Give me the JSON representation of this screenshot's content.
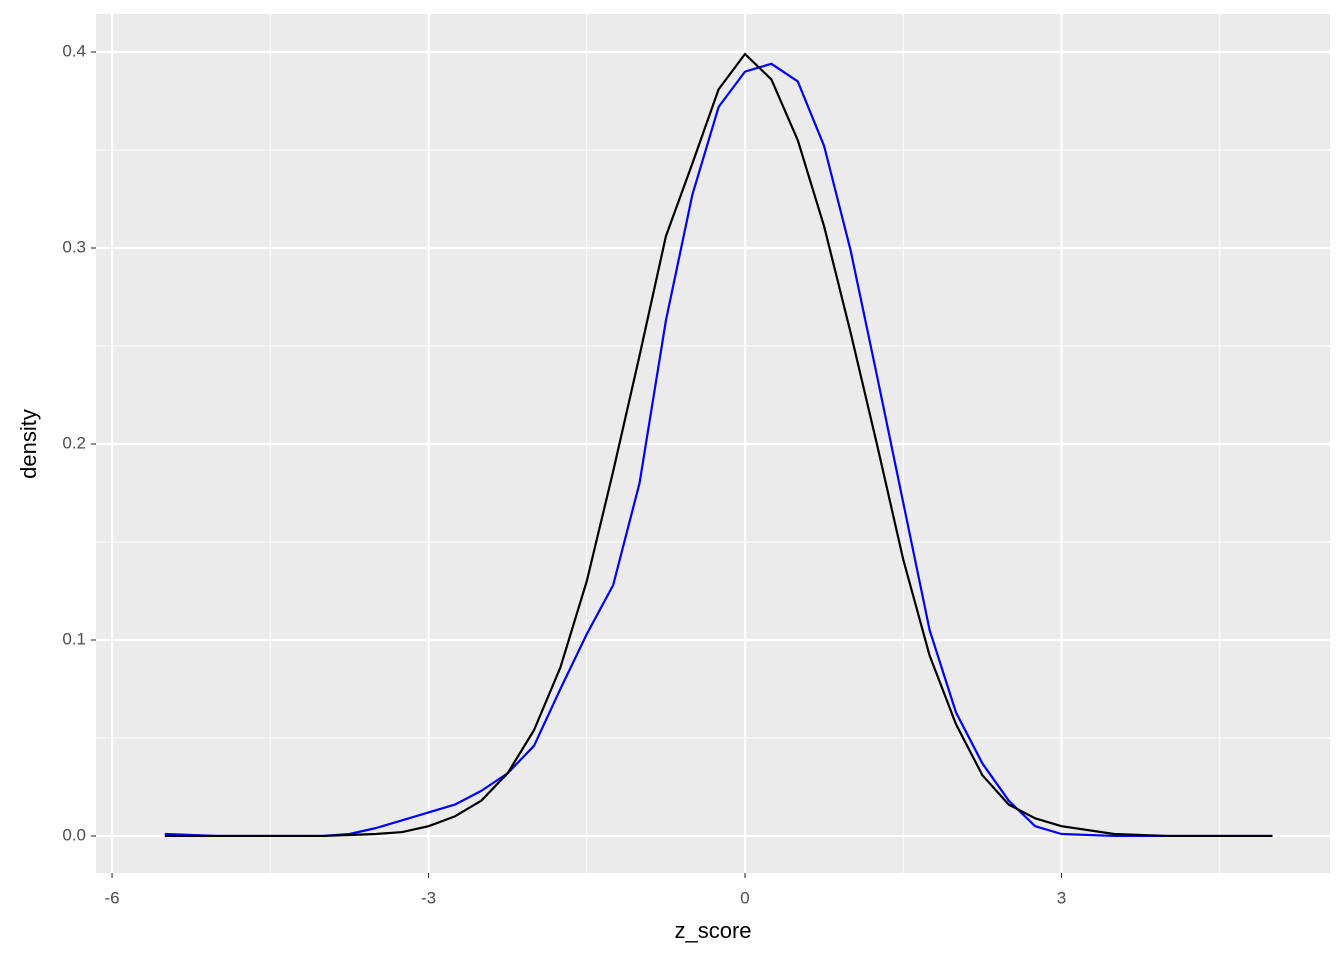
{
  "chart_data": {
    "type": "line",
    "x_label": "z_score",
    "y_label": "density",
    "x": [
      -5.5,
      -5,
      -4.5,
      -4,
      -3.75,
      -3.5,
      -3.25,
      -3,
      -2.75,
      -2.5,
      -2.25,
      -2,
      -1.75,
      -1.5,
      -1.25,
      -1,
      -0.75,
      -0.5,
      -0.25,
      0,
      0.25,
      0.5,
      0.75,
      1,
      1.25,
      1.5,
      1.75,
      2,
      2.25,
      2.5,
      2.75,
      3,
      3.5,
      4,
      4.5,
      5
    ],
    "series": [
      {
        "color": "#0000ff",
        "values": [
          0.001,
          0,
          0,
          0,
          0.001,
          0.004,
          0.008,
          0.012,
          0.016,
          0.023,
          0.032,
          0.046,
          0.075,
          0.103,
          0.128,
          0.18,
          0.263,
          0.327,
          0.372,
          0.39,
          0.394,
          0.385,
          0.352,
          0.299,
          0.235,
          0.17,
          0.105,
          0.063,
          0.037,
          0.018,
          0.005,
          0.001,
          0,
          0,
          0,
          0
        ]
      },
      {
        "color": "#000000",
        "values": [
          0,
          0,
          0,
          0,
          0.0005,
          0.001,
          0.002,
          0.005,
          0.01,
          0.018,
          0.032,
          0.054,
          0.086,
          0.13,
          0.186,
          0.245,
          0.306,
          0.343,
          0.381,
          0.399,
          0.386,
          0.355,
          0.311,
          0.257,
          0.2,
          0.141,
          0.092,
          0.057,
          0.031,
          0.016,
          0.009,
          0.005,
          0.001,
          0,
          0,
          0
        ]
      }
    ],
    "xlim": [
      -6.152,
      5.545
    ],
    "xticks": [
      -6,
      -3,
      0,
      3
    ],
    "ylim": [
      -0.0189,
      0.4194
    ],
    "yticks": [
      {
        "value": 0,
        "label": "0.0"
      },
      0.1,
      0.2,
      0.3,
      0.4
    ],
    "grid": true
  }
}
